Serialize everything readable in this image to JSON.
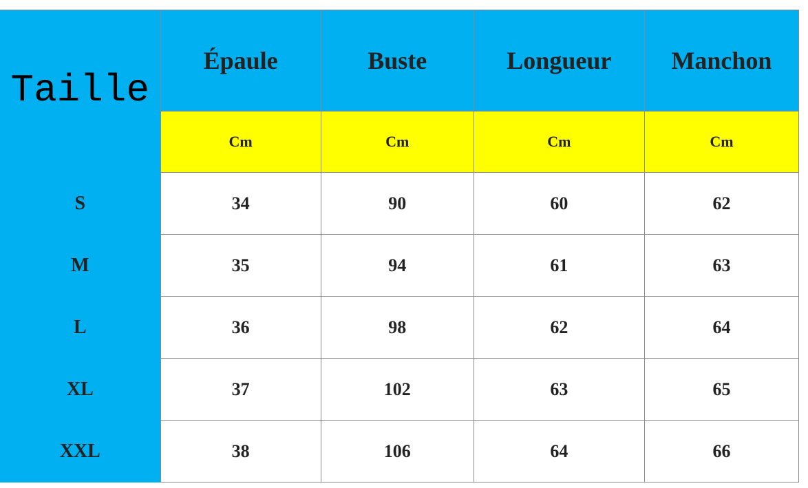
{
  "table": {
    "corner_label": "Taille",
    "columns": [
      "Épaule",
      "Buste",
      "Longueur",
      "Manchon"
    ],
    "units": [
      "Cm",
      "Cm",
      "Cm",
      "Cm"
    ],
    "rows": [
      {
        "size": "S",
        "values": [
          "34",
          "90",
          "60",
          "62"
        ]
      },
      {
        "size": "M",
        "values": [
          "35",
          "94",
          "61",
          "63"
        ]
      },
      {
        "size": "L",
        "values": [
          "36",
          "98",
          "62",
          "64"
        ]
      },
      {
        "size": "XL",
        "values": [
          "37",
          "102",
          "63",
          "65"
        ]
      },
      {
        "size": "XXL",
        "values": [
          "38",
          "106",
          "64",
          "66"
        ]
      }
    ]
  },
  "colors": {
    "header_bg": "#00b0f0",
    "unit_bg": "#ffff00",
    "body_bg": "#ffffff"
  }
}
